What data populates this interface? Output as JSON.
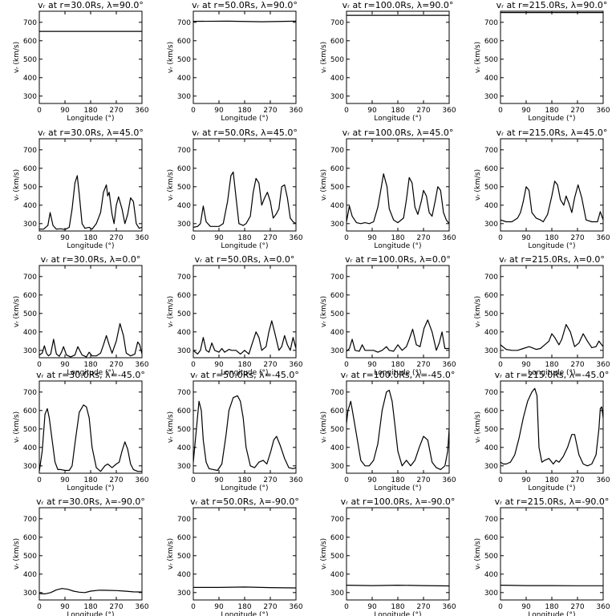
{
  "chart_data": {
    "type": "line",
    "rows": 5,
    "cols": 4,
    "xlabel": "Longitude (°)",
    "ylabel": "vᵣ (km/s)",
    "xlim": [
      0,
      360
    ],
    "ylim": [
      260,
      760
    ],
    "xticks": [
      0,
      90,
      180,
      270,
      360
    ],
    "yticks": [
      300,
      400,
      500,
      600,
      700
    ],
    "panels": [
      {
        "title": "vᵣ at r=30.0Rs, λ=90.0°",
        "x": [
          0,
          360
        ],
        "y": [
          651,
          651
        ]
      },
      {
        "title": "vᵣ at r=50.0Rs, λ=90.0°",
        "x": [
          0,
          120,
          240,
          360
        ],
        "y": [
          705,
          706,
          703,
          706
        ]
      },
      {
        "title": "vᵣ at r=100.0Rs, λ=90.0°",
        "x": [
          0,
          360
        ],
        "y": [
          738,
          738
        ]
      },
      {
        "title": "vᵣ at r=215.0Rs, λ=90.0°",
        "x": [
          0,
          360
        ],
        "y": [
          753,
          753
        ]
      },
      {
        "title": "vᵣ at r=30.0Rs, λ=45.0°",
        "x": [
          0,
          15,
          30,
          38,
          48,
          60,
          75,
          90,
          105,
          115,
          125,
          133,
          140,
          150,
          160,
          175,
          185,
          200,
          215,
          225,
          235,
          240,
          245,
          255,
          262,
          270,
          278,
          290,
          300,
          310,
          320,
          330,
          340,
          350,
          360
        ],
        "y": [
          270,
          270,
          290,
          360,
          290,
          270,
          272,
          268,
          280,
          380,
          520,
          560,
          460,
          300,
          275,
          280,
          270,
          300,
          360,
          470,
          510,
          450,
          470,
          350,
          300,
          400,
          445,
          380,
          300,
          350,
          440,
          420,
          300,
          275,
          280
        ]
      },
      {
        "title": "vᵣ at r=50.0Rs, λ=45.0°",
        "x": [
          0,
          15,
          25,
          35,
          45,
          60,
          75,
          90,
          105,
          120,
          132,
          140,
          150,
          160,
          175,
          185,
          200,
          210,
          220,
          230,
          240,
          250,
          260,
          270,
          280,
          290,
          300,
          310,
          320,
          330,
          340,
          350,
          360
        ],
        "y": [
          280,
          285,
          300,
          395,
          310,
          285,
          285,
          285,
          300,
          420,
          560,
          580,
          440,
          300,
          290,
          300,
          340,
          470,
          545,
          520,
          400,
          440,
          470,
          420,
          330,
          350,
          380,
          500,
          510,
          440,
          330,
          310,
          300
        ]
      },
      {
        "title": "vᵣ at r=100.0Rs, λ=45.0°",
        "x": [
          0,
          10,
          20,
          35,
          50,
          65,
          80,
          95,
          110,
          120,
          130,
          142,
          150,
          165,
          180,
          200,
          210,
          220,
          230,
          240,
          250,
          262,
          270,
          280,
          290,
          300,
          312,
          320,
          330,
          340,
          350,
          360
        ],
        "y": [
          310,
          395,
          340,
          305,
          300,
          305,
          300,
          310,
          390,
          480,
          570,
          500,
          380,
          320,
          305,
          330,
          430,
          550,
          520,
          390,
          350,
          420,
          480,
          450,
          360,
          340,
          430,
          500,
          480,
          360,
          320,
          300
        ]
      },
      {
        "title": "vᵣ at r=215.0Rs, λ=45.0°",
        "x": [
          0,
          20,
          40,
          60,
          70,
          80,
          90,
          100,
          110,
          125,
          140,
          150,
          165,
          180,
          190,
          200,
          210,
          222,
          230,
          240,
          250,
          260,
          272,
          285,
          300,
          320,
          340,
          350,
          360
        ],
        "y": [
          320,
          310,
          310,
          330,
          360,
          420,
          500,
          480,
          360,
          330,
          320,
          310,
          350,
          450,
          530,
          510,
          430,
          400,
          450,
          410,
          360,
          440,
          510,
          440,
          320,
          310,
          310,
          365,
          320
        ]
      },
      {
        "title": "vᵣ at r=30.0Rs, λ=0.0°",
        "x": [
          0,
          10,
          18,
          25,
          32,
          40,
          50,
          60,
          70,
          78,
          85,
          95,
          110,
          125,
          135,
          150,
          165,
          175,
          185,
          200,
          215,
          225,
          235,
          245,
          255,
          270,
          283,
          295,
          305,
          320,
          335,
          345,
          352,
          360
        ],
        "y": [
          275,
          285,
          325,
          285,
          270,
          280,
          360,
          280,
          268,
          290,
          320,
          275,
          265,
          275,
          320,
          275,
          265,
          290,
          270,
          270,
          285,
          330,
          380,
          330,
          285,
          350,
          445,
          380,
          285,
          270,
          280,
          345,
          330,
          280
        ]
      },
      {
        "title": "vᵣ at r=50.0Rs, λ=0.0°",
        "x": [
          0,
          15,
          25,
          35,
          45,
          55,
          65,
          75,
          90,
          100,
          110,
          125,
          135,
          150,
          165,
          180,
          195,
          205,
          220,
          230,
          240,
          255,
          265,
          275,
          285,
          300,
          310,
          320,
          330,
          340,
          350,
          360
        ],
        "y": [
          300,
          280,
          300,
          370,
          300,
          290,
          340,
          300,
          290,
          310,
          290,
          305,
          300,
          300,
          280,
          300,
          280,
          330,
          400,
          370,
          300,
          320,
          400,
          460,
          400,
          300,
          320,
          380,
          330,
          300,
          370,
          310
        ]
      },
      {
        "title": "vᵣ at r=100.0Rs, λ=0.0°",
        "x": [
          0,
          10,
          20,
          30,
          45,
          55,
          65,
          80,
          95,
          110,
          125,
          140,
          150,
          165,
          180,
          195,
          210,
          220,
          232,
          245,
          258,
          272,
          285,
          300,
          315,
          325,
          335,
          345,
          360
        ],
        "y": [
          295,
          310,
          360,
          300,
          295,
          330,
          300,
          300,
          300,
          290,
          300,
          320,
          300,
          295,
          330,
          300,
          320,
          360,
          415,
          330,
          320,
          420,
          465,
          400,
          300,
          340,
          400,
          310,
          310
        ]
      },
      {
        "title": "vᵣ at r=215.0Rs, λ=0.0°",
        "x": [
          0,
          20,
          40,
          60,
          80,
          100,
          110,
          125,
          140,
          155,
          170,
          180,
          190,
          205,
          215,
          230,
          245,
          260,
          275,
          290,
          305,
          320,
          335,
          345,
          360
        ],
        "y": [
          330,
          305,
          300,
          300,
          310,
          320,
          315,
          305,
          310,
          330,
          350,
          390,
          370,
          330,
          360,
          440,
          400,
          320,
          340,
          390,
          350,
          315,
          320,
          350,
          320
        ]
      },
      {
        "title": "vᵣ at r=30.0Rs, λ=-45.0°",
        "x": [
          0,
          10,
          20,
          28,
          35,
          45,
          55,
          65,
          75,
          90,
          105,
          115,
          125,
          140,
          155,
          165,
          175,
          185,
          200,
          215,
          230,
          240,
          255,
          270,
          280,
          290,
          300,
          310,
          320,
          330,
          345,
          360
        ],
        "y": [
          270,
          380,
          580,
          610,
          560,
          440,
          320,
          280,
          280,
          275,
          275,
          300,
          420,
          590,
          630,
          620,
          560,
          400,
          290,
          270,
          300,
          310,
          290,
          310,
          320,
          380,
          430,
          390,
          310,
          280,
          270,
          270
        ]
      },
      {
        "title": "vᵣ at r=50.0Rs, λ=-45.0°",
        "x": [
          0,
          12,
          20,
          28,
          35,
          45,
          55,
          70,
          85,
          100,
          115,
          125,
          140,
          155,
          165,
          175,
          185,
          200,
          215,
          230,
          245,
          258,
          272,
          282,
          292,
          305,
          320,
          335,
          350,
          360
        ],
        "y": [
          320,
          520,
          650,
          600,
          440,
          320,
          285,
          280,
          275,
          310,
          470,
          600,
          670,
          680,
          650,
          560,
          400,
          300,
          290,
          320,
          330,
          310,
          380,
          440,
          460,
          410,
          340,
          290,
          285,
          290
        ]
      },
      {
        "title": "vᵣ at r=100.0Rs, λ=-45.0°",
        "x": [
          0,
          5,
          15,
          25,
          35,
          50,
          65,
          80,
          95,
          110,
          125,
          140,
          150,
          160,
          170,
          180,
          195,
          210,
          225,
          240,
          255,
          270,
          285,
          300,
          315,
          330,
          345,
          355,
          360
        ],
        "y": [
          530,
          600,
          650,
          560,
          470,
          330,
          300,
          300,
          330,
          420,
          600,
          700,
          710,
          650,
          520,
          380,
          300,
          330,
          300,
          330,
          400,
          460,
          440,
          320,
          290,
          280,
          300,
          380,
          500
        ]
      },
      {
        "title": "vᵣ at r=215.0Rs, λ=-45.0°",
        "x": [
          0,
          10,
          20,
          35,
          50,
          65,
          80,
          95,
          110,
          120,
          128,
          135,
          145,
          155,
          170,
          185,
          195,
          205,
          220,
          235,
          250,
          260,
          275,
          290,
          305,
          320,
          335,
          345,
          350,
          355,
          360
        ],
        "y": [
          320,
          310,
          310,
          320,
          360,
          450,
          560,
          650,
          700,
          720,
          680,
          400,
          320,
          330,
          340,
          310,
          330,
          320,
          350,
          400,
          470,
          470,
          360,
          310,
          300,
          310,
          360,
          500,
          610,
          620,
          560
        ]
      },
      {
        "title": "vᵣ at r=30.0Rs, λ=-90.0°",
        "x": [
          0,
          20,
          40,
          60,
          80,
          100,
          120,
          140,
          160,
          180,
          210,
          240,
          270,
          300,
          330,
          360
        ],
        "y": [
          295,
          293,
          300,
          315,
          322,
          318,
          308,
          302,
          300,
          308,
          313,
          312,
          311,
          308,
          304,
          303
        ]
      },
      {
        "title": "vᵣ at r=50.0Rs, λ=-90.0°",
        "x": [
          0,
          90,
          180,
          270,
          360
        ],
        "y": [
          328,
          328,
          330,
          327,
          325
        ]
      },
      {
        "title": "vᵣ at r=100.0Rs, λ=-90.0°",
        "x": [
          0,
          90,
          180,
          270,
          360
        ],
        "y": [
          340,
          338,
          340,
          338,
          336
        ]
      },
      {
        "title": "vᵣ at r=215.0Rs, λ=-90.0°",
        "x": [
          0,
          90,
          180,
          270,
          360
        ],
        "y": [
          340,
          338,
          338,
          337,
          337
        ]
      }
    ]
  }
}
